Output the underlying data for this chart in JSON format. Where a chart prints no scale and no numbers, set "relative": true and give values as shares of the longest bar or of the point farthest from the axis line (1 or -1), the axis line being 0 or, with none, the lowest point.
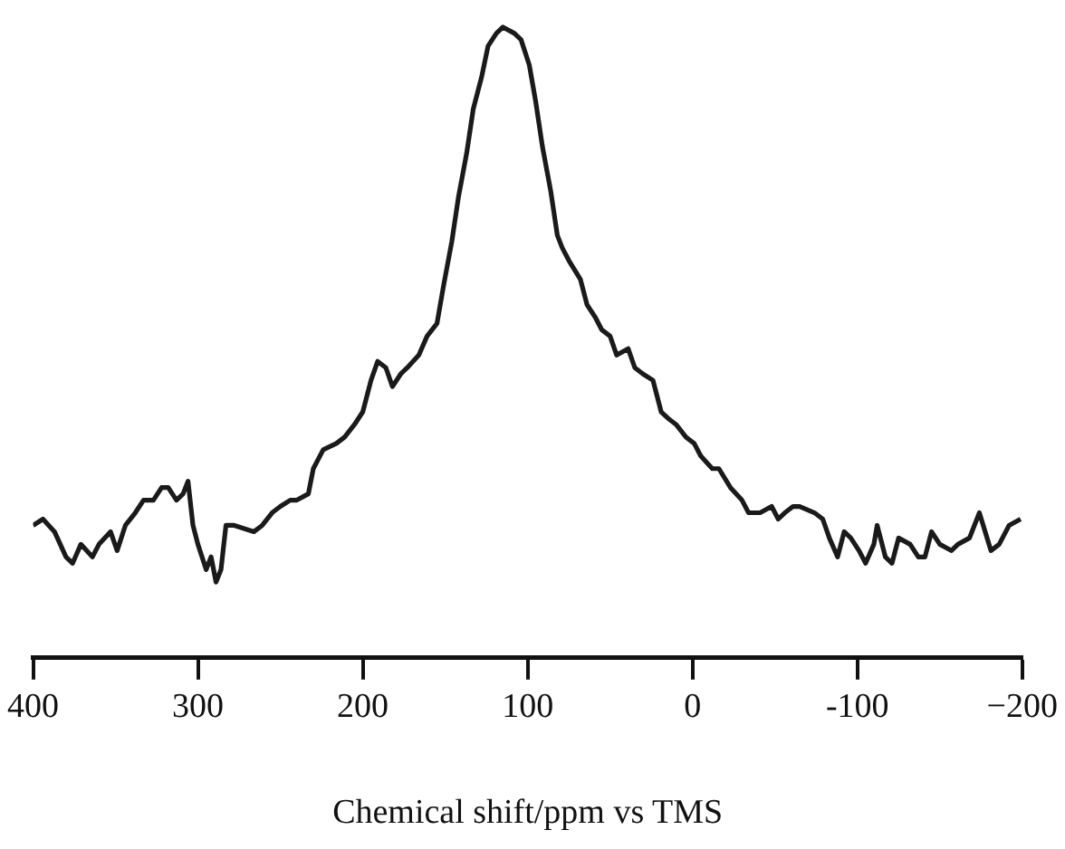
{
  "chart_data": {
    "type": "line",
    "xlabel": "Chemical shift/ppm vs TMS",
    "relative": true,
    "grid": false,
    "legend": false,
    "marker": "none",
    "line_style": "solid",
    "tick_labels": "x",
    "xlim": [
      400,
      -200
    ],
    "xticks": [
      400,
      300,
      200,
      100,
      0,
      {
        "value": -100,
        "label": "-100"
      },
      {
        "value": -200,
        "label": "−200"
      }
    ],
    "series": [
      {
        "color": "#1a1a1a",
        "x": [
          400,
          394,
          387,
          380,
          376,
          371,
          364,
          360,
          353,
          349,
          344,
          338,
          333,
          327,
          322,
          318,
          313,
          309,
          306,
          303,
          300,
          295,
          292,
          289,
          286,
          283,
          278,
          266,
          261,
          255,
          250,
          244,
          240,
          233,
          230,
          224,
          216,
          211,
          205,
          200,
          195,
          191,
          186,
          182,
          177,
          173,
          166,
          161,
          155,
          151,
          146,
          142,
          137,
          133,
          128,
          124,
          119,
          115,
          108,
          104,
          99,
          95,
          91,
          86,
          82,
          79,
          75,
          68,
          64,
          59,
          55,
          50,
          46,
          39,
          35,
          30,
          24,
          19,
          15,
          10,
          4,
          -1,
          -5,
          -12,
          -16,
          -23,
          -30,
          -34,
          -41,
          -48,
          -52,
          -56,
          -61,
          -65,
          -74,
          -79,
          -83,
          -88,
          -92,
          -96,
          -101,
          -105,
          -110,
          -112,
          -117,
          -121,
          -125,
          -132,
          -137,
          -141,
          -145,
          -150,
          -157,
          -161,
          -168,
          -174,
          -181,
          -186,
          -192,
          -199
        ],
        "values": [
          0.21,
          0.22,
          0.2,
          0.16,
          0.15,
          0.18,
          0.16,
          0.18,
          0.2,
          0.17,
          0.21,
          0.23,
          0.25,
          0.25,
          0.27,
          0.27,
          0.25,
          0.26,
          0.28,
          0.21,
          0.18,
          0.14,
          0.16,
          0.12,
          0.14,
          0.21,
          0.21,
          0.2,
          0.21,
          0.23,
          0.24,
          0.25,
          0.25,
          0.26,
          0.3,
          0.33,
          0.34,
          0.35,
          0.37,
          0.39,
          0.44,
          0.47,
          0.46,
          0.43,
          0.45,
          0.46,
          0.48,
          0.51,
          0.53,
          0.59,
          0.66,
          0.73,
          0.8,
          0.87,
          0.92,
          0.97,
          0.99,
          1,
          0.99,
          0.98,
          0.94,
          0.88,
          0.81,
          0.74,
          0.67,
          0.65,
          0.63,
          0.6,
          0.56,
          0.54,
          0.52,
          0.51,
          0.48,
          0.49,
          0.46,
          0.45,
          0.44,
          0.39,
          0.38,
          0.37,
          0.35,
          0.34,
          0.32,
          0.3,
          0.3,
          0.27,
          0.25,
          0.23,
          0.23,
          0.24,
          0.22,
          0.23,
          0.24,
          0.24,
          0.23,
          0.22,
          0.19,
          0.16,
          0.2,
          0.19,
          0.17,
          0.15,
          0.18,
          0.21,
          0.16,
          0.15,
          0.19,
          0.18,
          0.16,
          0.16,
          0.2,
          0.18,
          0.17,
          0.18,
          0.19,
          0.23,
          0.17,
          0.18,
          0.21,
          0.22
        ]
      }
    ]
  }
}
